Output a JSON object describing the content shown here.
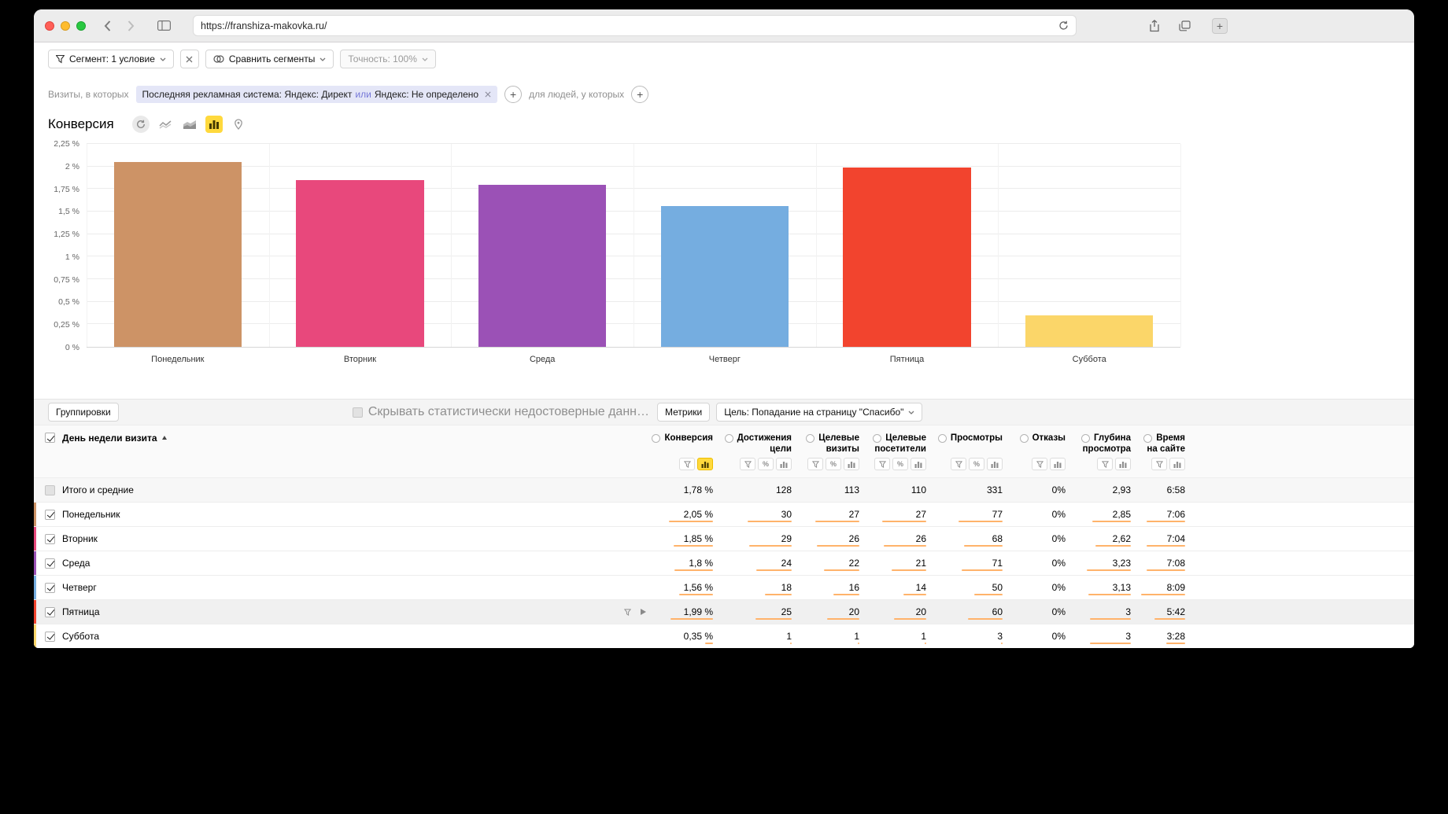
{
  "browser": {
    "url": "https://franshiza-makovka.ru/"
  },
  "segment_bar": {
    "segment_button": "Сегмент: 1 условие",
    "compare_button": "Сравнить сегменты",
    "accuracy_button": "Точность: 100%"
  },
  "filter_bar": {
    "visits_label": "Визиты, в которых",
    "chip_part1": "Последняя рекламная система: Яндекс: Директ",
    "chip_or": "или",
    "chip_part2": "Яндекс: Не определено",
    "people_label": "для людей, у которых"
  },
  "chart": {
    "title": "Конверсия"
  },
  "chart_data": {
    "type": "bar",
    "title": "Конверсия",
    "categories": [
      "Понедельник",
      "Вторник",
      "Среда",
      "Четверг",
      "Пятница",
      "Суббота"
    ],
    "values": [
      2.05,
      1.85,
      1.8,
      1.56,
      1.99,
      0.35
    ],
    "colors": [
      "#cd9366",
      "#e8487c",
      "#9b51b6",
      "#75ade0",
      "#f2442e",
      "#fbd669"
    ],
    "xlabel": "",
    "ylabel": "",
    "ylim": [
      0,
      2.25
    ],
    "ytick_labels": [
      "0 %",
      "0,25 %",
      "0,5 %",
      "0,75 %",
      "1 %",
      "1,25 %",
      "1,5 %",
      "1,75 %",
      "2 %",
      "2,25 %"
    ],
    "grid": true,
    "legend": false
  },
  "table": {
    "groupings_button": "Группировки",
    "hide_unreliable_label": "Скрывать статистически недостоверные данн…",
    "metrics_button": "Метрики",
    "goal_select": "Цель: Попадание на страницу \"Спасибо\"",
    "row_dimension": "День недели визита",
    "columns": [
      {
        "label": "Конверсия",
        "lines": [
          "Конверсия"
        ],
        "icons": [
          "filter",
          "chart-selected"
        ]
      },
      {
        "label": "Достижения цели",
        "lines": [
          "Достижения",
          "цели"
        ],
        "icons": [
          "filter",
          "percent",
          "chart"
        ]
      },
      {
        "label": "Целевые визиты",
        "lines": [
          "Целевые",
          "визиты"
        ],
        "icons": [
          "filter",
          "percent",
          "chart"
        ]
      },
      {
        "label": "Целевые посетители",
        "lines": [
          "Целевые",
          "посетители"
        ],
        "icons": [
          "filter",
          "percent",
          "chart"
        ]
      },
      {
        "label": "Просмотры",
        "lines": [
          "Просмотры"
        ],
        "icons": [
          "filter",
          "percent",
          "chart"
        ]
      },
      {
        "label": "Отказы",
        "lines": [
          "Отказы"
        ],
        "icons": [
          "filter",
          "chart"
        ]
      },
      {
        "label": "Глубина просмотра",
        "lines": [
          "Глубина",
          "просмотра"
        ],
        "icons": [
          "filter",
          "chart"
        ]
      },
      {
        "label": "Время на сайте",
        "lines": [
          "Время",
          "на сайте"
        ],
        "icons": [
          "filter",
          "chart"
        ]
      }
    ],
    "totals_row": {
      "label": "Итого и средние",
      "values": [
        "1,78 %",
        "128",
        "113",
        "110",
        "331",
        "0%",
        "2,93",
        "6:58"
      ]
    },
    "rows": [
      {
        "label": "Понедельник",
        "color": "#cd9366",
        "checked": true,
        "values": [
          "2,05 %",
          "30",
          "27",
          "27",
          "77",
          "0%",
          "2,85",
          "7:06"
        ],
        "bars": [
          1,
          1,
          1,
          1,
          1,
          0,
          0.88,
          0.87
        ]
      },
      {
        "label": "Вторник",
        "color": "#e8487c",
        "checked": true,
        "values": [
          "1,85 %",
          "29",
          "26",
          "26",
          "68",
          "0%",
          "2,62",
          "7:04"
        ],
        "bars": [
          0.9,
          0.97,
          0.96,
          0.96,
          0.88,
          0,
          0.81,
          0.87
        ]
      },
      {
        "label": "Среда",
        "color": "#9b51b6",
        "checked": true,
        "values": [
          "1,8 %",
          "24",
          "22",
          "21",
          "71",
          "0%",
          "3,23",
          "7:08"
        ],
        "bars": [
          0.88,
          0.8,
          0.81,
          0.78,
          0.92,
          0,
          1,
          0.88
        ]
      },
      {
        "label": "Четверг",
        "color": "#75ade0",
        "checked": true,
        "values": [
          "1,56 %",
          "18",
          "16",
          "14",
          "50",
          "0%",
          "3,13",
          "8:09"
        ],
        "bars": [
          0.76,
          0.6,
          0.59,
          0.52,
          0.65,
          0,
          0.97,
          1
        ]
      },
      {
        "label": "Пятница",
        "color": "#f2442e",
        "checked": true,
        "hovered": true,
        "values": [
          "1,99 %",
          "25",
          "20",
          "20",
          "60",
          "0%",
          "3",
          "5:42"
        ],
        "bars": [
          0.97,
          0.83,
          0.74,
          0.74,
          0.78,
          0,
          0.93,
          0.7
        ]
      },
      {
        "label": "Суббота",
        "color": "#fbd669",
        "checked": true,
        "values": [
          "0,35 %",
          "1",
          "1",
          "1",
          "3",
          "0%",
          "3",
          "3:28"
        ],
        "bars": [
          0.17,
          0.03,
          0.04,
          0.04,
          0.04,
          0,
          0.93,
          0.43
        ]
      }
    ]
  }
}
